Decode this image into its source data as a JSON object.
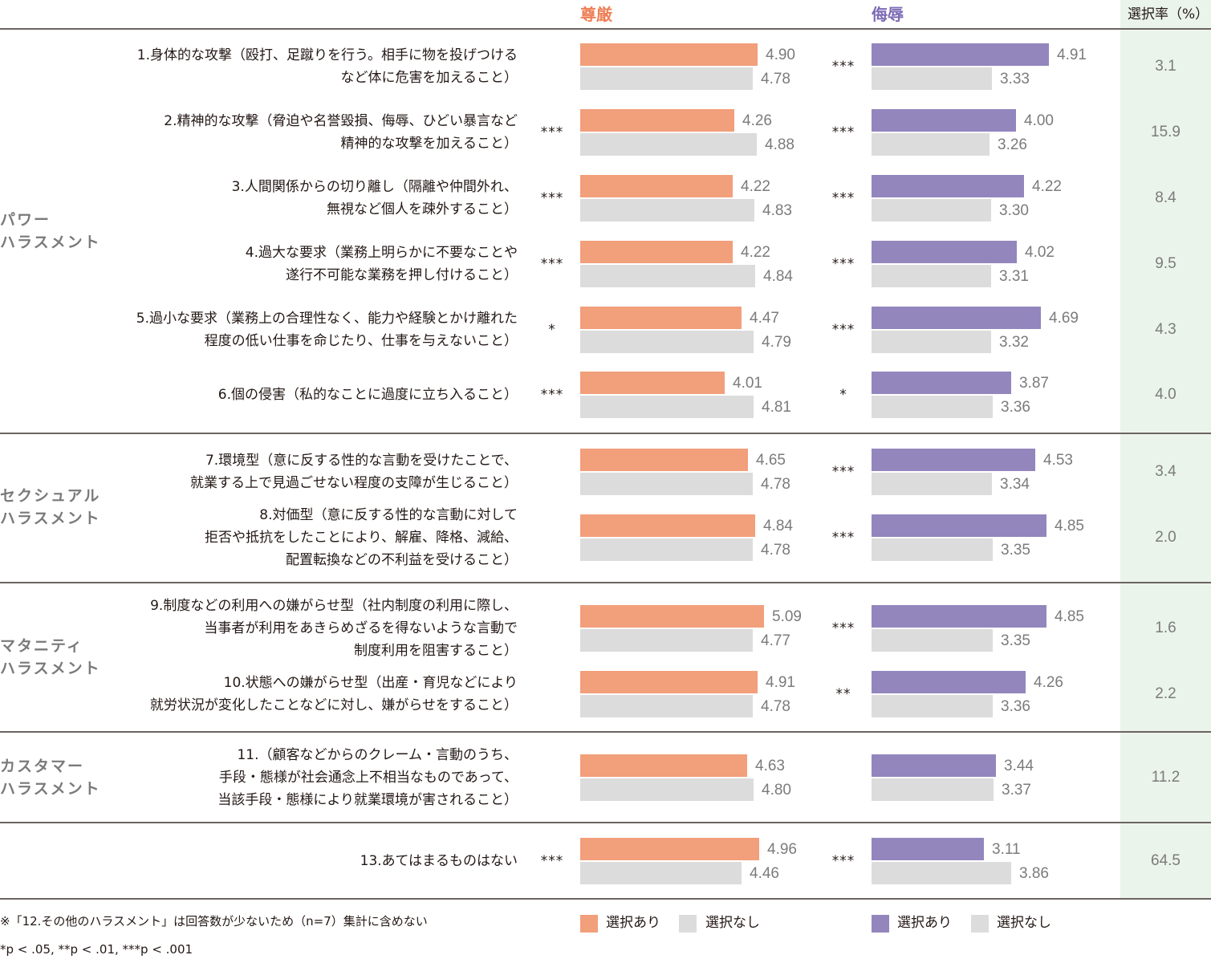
{
  "headers": {
    "dignity": "尊厳",
    "insult": "侮辱",
    "rate": "選択率（%）"
  },
  "colors": {
    "dignity_selected": "#f29f7b",
    "insult_selected": "#9386bd",
    "not_selected": "#dcdcdc",
    "dignity_header": "#ee7f57",
    "insult_header": "#7d6cb5",
    "rate_column_bg": "#ebf4ea"
  },
  "sections": [
    {
      "label": "パワー\nハラスメント"
    },
    {
      "label": "セクシュアル\nハラスメント"
    },
    {
      "label": "マタニティ\nハラスメント"
    },
    {
      "label": "カスタマー\nハラスメント"
    }
  ],
  "legend": {
    "dignity_selected": "選択あり",
    "dignity_not_selected": "選択なし",
    "insult_selected": "選択あり",
    "insult_not_selected": "選択なし"
  },
  "notes": {
    "exclusion": "※「12.その他のハラスメント」は回答数が少ないため（n=7）集計に含めない",
    "significance": "*p < .05, **p < .01, ***p < .001"
  },
  "chart_data": {
    "type": "bar",
    "orientation": "horizontal",
    "title": "",
    "groups": [
      "尊厳",
      "侮辱"
    ],
    "series_names": [
      "選択あり",
      "選択なし"
    ],
    "categories": [
      "1.身体的な攻撃（殴打、足蹴りを行う。相手に物を投げつける\nなど体に危害を加えること）",
      "2.精神的な攻撃（脅迫や名誉毀損、侮辱、ひどい暴言など\n精神的な攻撃を加えること）",
      "3.人間関係からの切り離し（隔離や仲間外れ、\n無視など個人を疎外すること）",
      "4.過大な要求（業務上明らかに不要なことや\n遂行不可能な業務を押し付けること）",
      "5.過小な要求（業務上の合理性なく、能力や経験とかけ離れた\n程度の低い仕事を命じたり、仕事を与えないこと）",
      "6.個の侵害（私的なことに過度に立ち入ること）",
      "7.環境型（意に反する性的な言動を受けたことで、\n就業する上で見過ごせない程度の支障が生じること）",
      "8.対価型（意に反する性的な言動に対して\n拒否や抵抗をしたことにより、解雇、降格、減給、\n配置転換などの不利益を受けること）",
      "9.制度などの利用への嫌がらせ型（社内制度の利用に際し、\n当事者が利用をあきらめざるを得ないような言動で\n制度利用を阻害すること）",
      "10.状態への嫌がらせ型（出産・育児などにより\n就労状況が変化したことなどに対し、嫌がらせをすること）",
      "11.（顧客などからのクレーム・言動のうち、\n手段・態様が社会通念上不相当なものであって、\n当該手段・態様により就業環境が害されること）",
      "13.あてはまるものはない"
    ],
    "category_section": [
      0,
      0,
      0,
      0,
      0,
      0,
      1,
      1,
      2,
      2,
      3,
      null
    ],
    "series": [
      {
        "name": "尊厳・選択あり",
        "values": [
          4.9,
          4.26,
          4.22,
          4.22,
          4.47,
          4.01,
          4.65,
          4.84,
          5.09,
          4.91,
          4.63,
          4.96
        ]
      },
      {
        "name": "尊厳・選択なし",
        "values": [
          4.78,
          4.88,
          4.83,
          4.84,
          4.79,
          4.81,
          4.78,
          4.78,
          4.77,
          4.78,
          4.8,
          4.46
        ]
      },
      {
        "name": "侮辱・選択あり",
        "values": [
          4.91,
          4.0,
          4.22,
          4.02,
          4.69,
          3.87,
          4.53,
          4.85,
          4.85,
          4.26,
          3.44,
          3.11
        ]
      },
      {
        "name": "侮辱・選択なし",
        "values": [
          3.33,
          3.26,
          3.3,
          3.31,
          3.32,
          3.36,
          3.34,
          3.35,
          3.35,
          3.36,
          3.37,
          3.86
        ]
      }
    ],
    "value_labels": {
      "dignity_selected": [
        "4.90",
        "4.26",
        "4.22",
        "4.22",
        "4.47",
        "4.01",
        "4.65",
        "4.84",
        "5.09",
        "4.91",
        "4.63",
        "4.96"
      ],
      "dignity_not_selected": [
        "4.78",
        "4.88",
        "4.83",
        "4.84",
        "4.79",
        "4.81",
        "4.78",
        "4.78",
        "4.77",
        "4.78",
        "4.80",
        "4.46"
      ],
      "insult_selected": [
        "4.91",
        "4.00",
        "4.22",
        "4.02",
        "4.69",
        "3.87",
        "4.53",
        "4.85",
        "4.85",
        "4.26",
        "3.44",
        "3.11"
      ],
      "insult_not_selected": [
        "3.33",
        "3.26",
        "3.30",
        "3.31",
        "3.32",
        "3.36",
        "3.34",
        "3.35",
        "3.35",
        "3.36",
        "3.37",
        "3.86"
      ]
    },
    "significance_dignity": [
      "",
      "***",
      "***",
      "***",
      "*",
      "***",
      "",
      "",
      "",
      "",
      "",
      "***"
    ],
    "significance_insult": [
      "***",
      "***",
      "***",
      "***",
      "***",
      "*",
      "***",
      "***",
      "***",
      "**",
      "",
      "***"
    ],
    "selection_rate_percent": [
      "3.1",
      "15.9",
      "8.4",
      "9.5",
      "4.3",
      "4.0",
      "3.4",
      "2.0",
      "1.6",
      "2.2",
      "11.2",
      "64.5"
    ],
    "xlim": [
      0,
      5.5
    ],
    "grid": false,
    "legend_position": "bottom"
  }
}
